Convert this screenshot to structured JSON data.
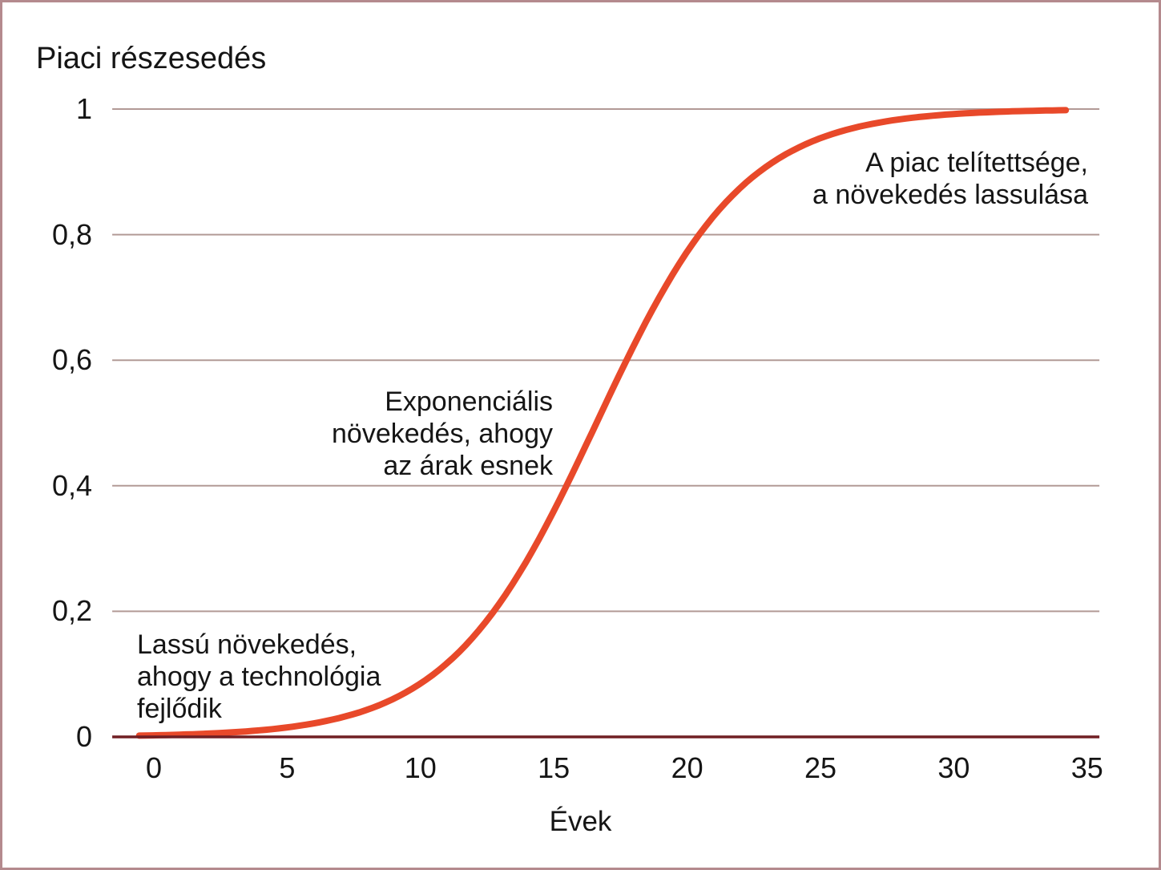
{
  "page": {
    "background": "#ffffff",
    "border_color": "#b48a8e",
    "text_color": "#151515"
  },
  "chart_data": {
    "type": "line",
    "title": "Piaci részesedés",
    "xlabel": "Évek",
    "ylabel": "Piaci részesedés",
    "x_ticks": [
      0,
      5,
      10,
      15,
      20,
      25,
      30,
      35
    ],
    "y_ticks": [
      {
        "label": "0",
        "value": 0
      },
      {
        "label": "0,2",
        "value": 0.2
      },
      {
        "label": "0,4",
        "value": 0.4
      },
      {
        "label": "0,6",
        "value": 0.6
      },
      {
        "label": "0,8",
        "value": 0.8
      },
      {
        "label": "1",
        "value": 1
      }
    ],
    "xlim": [
      -1.56,
      35.46
    ],
    "ylim": [
      0,
      1
    ],
    "grid": "horizontal-only",
    "legend": "none",
    "colors": {
      "curve": "#e8492a",
      "zero_axis": "#701f24",
      "gridline": "#b29a96"
    },
    "curve_model": {
      "kind": "logistic",
      "formula": "y = 1 / (1 + exp(-rate*(t - midpoint)))",
      "midpoint": 16.6,
      "rate": 0.36,
      "t_start": -0.55,
      "t_end": 34.3
    },
    "points": [
      {
        "x": 0,
        "y": 0.0025
      },
      {
        "x": 1,
        "y": 0.0036
      },
      {
        "x": 2,
        "y": 0.0052
      },
      {
        "x": 3,
        "y": 0.0074
      },
      {
        "x": 4,
        "y": 0.0106
      },
      {
        "x": 5,
        "y": 0.0151
      },
      {
        "x": 6,
        "y": 0.0215
      },
      {
        "x": 7,
        "y": 0.0306
      },
      {
        "x": 8,
        "y": 0.0433
      },
      {
        "x": 9,
        "y": 0.0609
      },
      {
        "x": 10,
        "y": 0.085
      },
      {
        "x": 11,
        "y": 0.1175
      },
      {
        "x": 12,
        "y": 0.1603
      },
      {
        "x": 13,
        "y": 0.215
      },
      {
        "x": 14,
        "y": 0.2817
      },
      {
        "x": 15,
        "y": 0.3595
      },
      {
        "x": 16,
        "y": 0.4463
      },
      {
        "x": 17,
        "y": 0.5359
      },
      {
        "x": 18,
        "y": 0.6233
      },
      {
        "x": 19,
        "y": 0.7038
      },
      {
        "x": 20,
        "y": 0.7729
      },
      {
        "x": 21,
        "y": 0.8298
      },
      {
        "x": 22,
        "y": 0.8745
      },
      {
        "x": 23,
        "y": 0.9093
      },
      {
        "x": 24,
        "y": 0.9346
      },
      {
        "x": 25,
        "y": 0.9536
      },
      {
        "x": 26,
        "y": 0.9671
      },
      {
        "x": 27,
        "y": 0.9768
      },
      {
        "x": 28,
        "y": 0.9837
      },
      {
        "x": 29,
        "y": 0.9886
      },
      {
        "x": 30,
        "y": 0.992
      },
      {
        "x": 31,
        "y": 0.9944
      },
      {
        "x": 32,
        "y": 0.9961
      },
      {
        "x": 33,
        "y": 0.9973
      },
      {
        "x": 34,
        "y": 0.9981
      }
    ],
    "annotations": [
      {
        "text": "Lassú növekedés, ahogy a technológia fejlődik",
        "lines": [
          "Lassú növekedés,",
          "ahogy a technológia",
          "fejlődik"
        ],
        "align": "left"
      },
      {
        "text": "Exponenciális növekedés, ahogy az árak esnek",
        "lines": [
          "Exponenciális",
          "növekedés, ahogy",
          "az árak esnek"
        ],
        "align": "right"
      },
      {
        "text": "A piac telítettsége, a növekedés lassulása",
        "lines": [
          "A piac telítettsége,",
          "a növekedés lassulása"
        ],
        "align": "right"
      }
    ]
  }
}
